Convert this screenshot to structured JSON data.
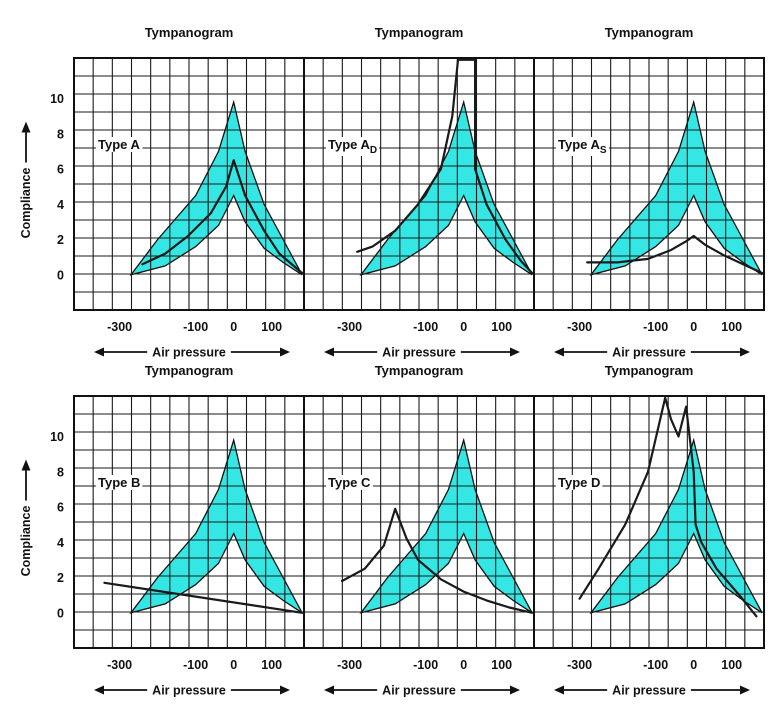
{
  "colors": {
    "band_fill": "#35E7E4",
    "line": "#1a1a1a",
    "grid": "#1a1a1a"
  },
  "shared": {
    "y_axis_label": "Compliance",
    "x_axis_label": "Air pressure",
    "y_ticks": [
      "0",
      "2",
      "4",
      "6",
      "8",
      "10"
    ],
    "x_ticks": [
      "-300",
      "-100",
      "0",
      "100"
    ]
  },
  "chart_data": [
    {
      "type": "line",
      "title": "Tympanogram",
      "annotation": {
        "text": "Type A",
        "sub": ""
      },
      "xlabel": "Air pressure",
      "ylabel": "Compliance",
      "xlim": [
        -420,
        185
      ],
      "ylim": [
        -2,
        12.3
      ],
      "grid": true,
      "normal_band": {
        "upper": [
          [
            -270,
            0
          ],
          [
            -200,
            2
          ],
          [
            -100,
            4.5
          ],
          [
            -40,
            7
          ],
          [
            0,
            9.8
          ],
          [
            30,
            7
          ],
          [
            80,
            4
          ],
          [
            130,
            2
          ],
          [
            180,
            0
          ]
        ],
        "lower": [
          [
            -270,
            0
          ],
          [
            -180,
            0.5
          ],
          [
            -100,
            1.6
          ],
          [
            -40,
            2.8
          ],
          [
            0,
            4.5
          ],
          [
            30,
            3
          ],
          [
            80,
            1.5
          ],
          [
            130,
            0.7
          ],
          [
            180,
            0
          ]
        ]
      },
      "series": [
        {
          "name": "",
          "x": [
            -240,
            -180,
            -120,
            -60,
            -20,
            0,
            30,
            80,
            120,
            180
          ],
          "y": [
            0.6,
            1.2,
            2.2,
            3.5,
            5,
            6.5,
            4.5,
            2.5,
            1.2,
            0.1
          ]
        }
      ]
    },
    {
      "type": "line",
      "title": "Tympanogram",
      "annotation": {
        "text": "Type A",
        "sub": "D"
      },
      "xlabel": "Air pressure",
      "ylabel": "Compliance",
      "xlim": [
        -420,
        185
      ],
      "ylim": [
        -2,
        12.3
      ],
      "grid": true,
      "normal_band": {
        "upper": [
          [
            -270,
            0
          ],
          [
            -200,
            2
          ],
          [
            -100,
            4.5
          ],
          [
            -40,
            7
          ],
          [
            0,
            9.8
          ],
          [
            30,
            7
          ],
          [
            80,
            4
          ],
          [
            130,
            2
          ],
          [
            180,
            0
          ]
        ],
        "lower": [
          [
            -270,
            0
          ],
          [
            -180,
            0.5
          ],
          [
            -100,
            1.6
          ],
          [
            -40,
            2.8
          ],
          [
            0,
            4.5
          ],
          [
            30,
            3
          ],
          [
            80,
            1.5
          ],
          [
            130,
            0.7
          ],
          [
            180,
            0
          ]
        ]
      },
      "series": [
        {
          "name": "",
          "x": [
            -280,
            -240,
            -180,
            -120,
            -60,
            -30,
            -15,
            -10,
            30,
            30,
            60,
            110,
            150,
            180
          ],
          "y": [
            1.3,
            1.6,
            2.5,
            4,
            6,
            9,
            12.2,
            12.2,
            12.2,
            6,
            4,
            2,
            0.8,
            0.1
          ]
        }
      ]
    },
    {
      "type": "line",
      "title": "Tympanogram",
      "annotation": {
        "text": "Type A",
        "sub": "S"
      },
      "xlabel": "Air pressure",
      "ylabel": "Compliance",
      "xlim": [
        -420,
        185
      ],
      "ylim": [
        -2,
        12.3
      ],
      "grid": true,
      "normal_band": {
        "upper": [
          [
            -270,
            0
          ],
          [
            -200,
            2
          ],
          [
            -100,
            4.5
          ],
          [
            -40,
            7
          ],
          [
            0,
            9.8
          ],
          [
            30,
            7
          ],
          [
            80,
            4
          ],
          [
            130,
            2
          ],
          [
            180,
            0
          ]
        ],
        "lower": [
          [
            -270,
            0
          ],
          [
            -180,
            0.5
          ],
          [
            -100,
            1.6
          ],
          [
            -40,
            2.8
          ],
          [
            0,
            4.5
          ],
          [
            30,
            3
          ],
          [
            80,
            1.5
          ],
          [
            130,
            0.7
          ],
          [
            180,
            0
          ]
        ]
      },
      "series": [
        {
          "name": "",
          "x": [
            -280,
            -200,
            -120,
            -60,
            -20,
            0,
            30,
            80,
            130,
            180
          ],
          "y": [
            0.7,
            0.7,
            0.9,
            1.4,
            1.9,
            2.2,
            1.7,
            1.1,
            0.6,
            0.1
          ]
        }
      ]
    },
    {
      "type": "line",
      "title": "Tympanogram",
      "annotation": {
        "text": "Type B",
        "sub": ""
      },
      "xlabel": "Air pressure",
      "ylabel": "Compliance",
      "xlim": [
        -420,
        185
      ],
      "ylim": [
        -2,
        12.3
      ],
      "grid": true,
      "normal_band": {
        "upper": [
          [
            -270,
            0
          ],
          [
            -200,
            2
          ],
          [
            -100,
            4.5
          ],
          [
            -40,
            7
          ],
          [
            0,
            9.8
          ],
          [
            30,
            7
          ],
          [
            80,
            4
          ],
          [
            130,
            2
          ],
          [
            180,
            0
          ]
        ],
        "lower": [
          [
            -270,
            0
          ],
          [
            -180,
            0.5
          ],
          [
            -100,
            1.6
          ],
          [
            -40,
            2.8
          ],
          [
            0,
            4.5
          ],
          [
            30,
            3
          ],
          [
            80,
            1.5
          ],
          [
            130,
            0.7
          ],
          [
            180,
            0
          ]
        ]
      },
      "series": [
        {
          "name": "",
          "x": [
            -340,
            180
          ],
          "y": [
            1.7,
            0
          ]
        }
      ]
    },
    {
      "type": "line",
      "title": "Tympanogram",
      "annotation": {
        "text": "Type C",
        "sub": ""
      },
      "xlabel": "Air pressure",
      "ylabel": "Compliance",
      "xlim": [
        -420,
        185
      ],
      "ylim": [
        -2,
        12.3
      ],
      "grid": true,
      "normal_band": {
        "upper": [
          [
            -270,
            0
          ],
          [
            -200,
            2
          ],
          [
            -100,
            4.5
          ],
          [
            -40,
            7
          ],
          [
            0,
            9.8
          ],
          [
            30,
            7
          ],
          [
            80,
            4
          ],
          [
            130,
            2
          ],
          [
            180,
            0
          ]
        ],
        "lower": [
          [
            -270,
            0
          ],
          [
            -180,
            0.5
          ],
          [
            -100,
            1.6
          ],
          [
            -40,
            2.8
          ],
          [
            0,
            4.5
          ],
          [
            30,
            3
          ],
          [
            80,
            1.5
          ],
          [
            130,
            0.7
          ],
          [
            180,
            0
          ]
        ]
      },
      "series": [
        {
          "name": "",
          "x": [
            -320,
            -260,
            -210,
            -180,
            -150,
            -120,
            -60,
            0,
            60,
            120,
            180
          ],
          "y": [
            1.8,
            2.5,
            3.8,
            5.9,
            4.2,
            3,
            1.9,
            1.2,
            0.7,
            0.3,
            0
          ]
        }
      ]
    },
    {
      "type": "line",
      "title": "Tympanogram",
      "annotation": {
        "text": "Type D",
        "sub": ""
      },
      "xlabel": "Air pressure",
      "ylabel": "Compliance",
      "xlim": [
        -420,
        185
      ],
      "ylim": [
        -2,
        12.3
      ],
      "grid": true,
      "normal_band": {
        "upper": [
          [
            -270,
            0
          ],
          [
            -200,
            2
          ],
          [
            -100,
            4.5
          ],
          [
            -40,
            7
          ],
          [
            0,
            9.8
          ],
          [
            30,
            7
          ],
          [
            80,
            4
          ],
          [
            130,
            2
          ],
          [
            180,
            0
          ]
        ],
        "lower": [
          [
            -270,
            0
          ],
          [
            -180,
            0.5
          ],
          [
            -100,
            1.6
          ],
          [
            -40,
            2.8
          ],
          [
            0,
            4.5
          ],
          [
            30,
            3
          ],
          [
            80,
            1.5
          ],
          [
            130,
            0.7
          ],
          [
            180,
            0
          ]
        ]
      },
      "series": [
        {
          "name": "",
          "x": [
            -300,
            -250,
            -180,
            -120,
            -75,
            -60,
            -40,
            -20,
            0,
            5,
            20,
            60,
            120,
            165
          ],
          "y": [
            0.8,
            2.5,
            5,
            8,
            12.2,
            11,
            10,
            11.7,
            8,
            5,
            4,
            2.5,
            1,
            -0.2
          ]
        }
      ]
    }
  ]
}
